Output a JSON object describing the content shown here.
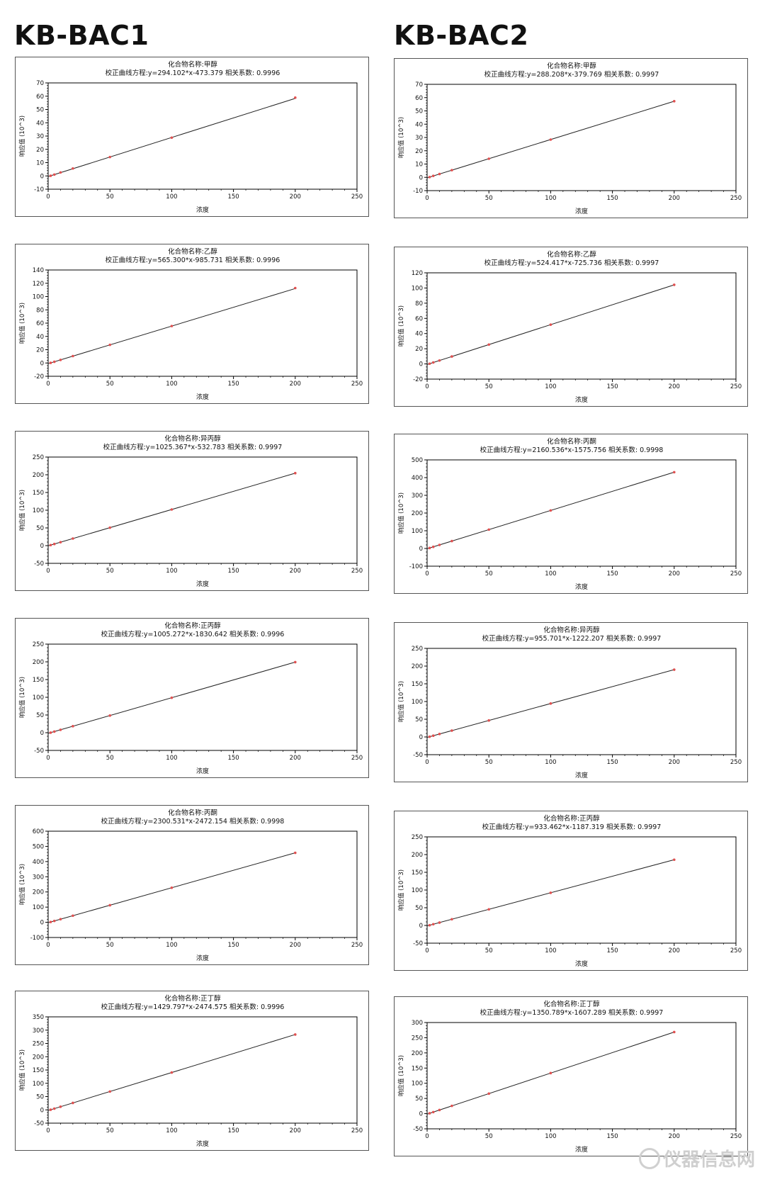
{
  "columns": [
    {
      "heading": "KB-BAC1"
    },
    {
      "heading": "KB-BAC2"
    }
  ],
  "watermark": {
    "text": "仪器信息网",
    "icon": "flask-icon"
  },
  "style": {
    "line_color": "#222222",
    "point_color": "#e05050",
    "axis_color": "#000000"
  },
  "chart_data": [
    {
      "type": "scatter",
      "column": "KB-BAC1",
      "title": "化合物名称:甲醇",
      "subtitle": "校正曲线方程:y=294.102*x-473.379 相关系数: 0.9996",
      "xlabel": "浓度",
      "ylabel": "响应值 (10^3)",
      "xlim": [
        0,
        250
      ],
      "ylim": [
        -10,
        70
      ],
      "xticks": [
        0,
        50,
        100,
        150,
        200,
        250
      ],
      "yticks": [
        -10,
        0,
        10,
        20,
        30,
        40,
        50,
        60,
        70
      ],
      "x": [
        2,
        5,
        10,
        20,
        50,
        100,
        200
      ],
      "y": [
        0.1,
        1.0,
        2.6,
        5.6,
        14.2,
        28.8,
        58.9
      ],
      "fit": {
        "slope": 0.294102,
        "intercept": -0.473379
      }
    },
    {
      "type": "scatter",
      "column": "KB-BAC1",
      "title": "化合物名称:乙醇",
      "subtitle": "校正曲线方程:y=565.300*x-985.731 相关系数: 0.9996",
      "xlabel": "浓度",
      "ylabel": "响应值 (10^3)",
      "xlim": [
        0,
        250
      ],
      "ylim": [
        -20,
        140
      ],
      "xticks": [
        0,
        50,
        100,
        150,
        200,
        250
      ],
      "yticks": [
        -20,
        0,
        20,
        40,
        60,
        80,
        100,
        120,
        140
      ],
      "x": [
        2,
        5,
        10,
        20,
        50,
        100,
        200
      ],
      "y": [
        0.2,
        1.8,
        4.6,
        10.4,
        27.3,
        55.6,
        112.8
      ],
      "fit": {
        "slope": 0.5653,
        "intercept": -0.985731
      }
    },
    {
      "type": "scatter",
      "column": "KB-BAC1",
      "title": "化合物名称:异丙醇",
      "subtitle": "校正曲线方程:y=1025.367*x-532.783 相关系数: 0.9997",
      "xlabel": "浓度",
      "ylabel": "响应值 (10^3)",
      "xlim": [
        0,
        250
      ],
      "ylim": [
        -50,
        250
      ],
      "xticks": [
        0,
        50,
        100,
        150,
        200,
        250
      ],
      "yticks": [
        -50,
        0,
        50,
        100,
        150,
        200,
        250
      ],
      "x": [
        2,
        5,
        10,
        20,
        50,
        100,
        200
      ],
      "y": [
        1.5,
        4.6,
        9.7,
        20.0,
        50.7,
        102.0,
        204.6
      ],
      "fit": {
        "slope": 1.025367,
        "intercept": -0.532783
      }
    },
    {
      "type": "scatter",
      "column": "KB-BAC1",
      "title": "化合物名称:正丙醇",
      "subtitle": "校正曲线方程:y=1005.272*x-1830.642 相关系数: 0.9996",
      "xlabel": "浓度",
      "ylabel": "响应值 (10^3)",
      "xlim": [
        0,
        250
      ],
      "ylim": [
        -50,
        250
      ],
      "xticks": [
        0,
        50,
        100,
        150,
        200,
        250
      ],
      "yticks": [
        -50,
        0,
        50,
        100,
        150,
        200,
        250
      ],
      "x": [
        2,
        5,
        10,
        20,
        50,
        100,
        200
      ],
      "y": [
        0.2,
        3.2,
        8.2,
        18.3,
        48.4,
        98.7,
        199.2
      ],
      "fit": {
        "slope": 1.005272,
        "intercept": -1.830642
      }
    },
    {
      "type": "scatter",
      "column": "KB-BAC1",
      "title": "化合物名称:丙酮",
      "subtitle": "校正曲线方程:y=2300.531*x-2472.154 相关系数: 0.9998",
      "xlabel": "浓度",
      "ylabel": "响应值 (10^3)",
      "xlim": [
        0,
        250
      ],
      "ylim": [
        -100,
        600
      ],
      "xticks": [
        0,
        50,
        100,
        150,
        200,
        250
      ],
      "yticks": [
        -100,
        0,
        100,
        200,
        300,
        400,
        500,
        600
      ],
      "x": [
        2,
        5,
        10,
        20,
        50,
        100,
        200
      ],
      "y": [
        2.1,
        9.0,
        20.5,
        43.5,
        112.6,
        227.6,
        457.6
      ],
      "fit": {
        "slope": 2.300531,
        "intercept": -2.472154
      }
    },
    {
      "type": "scatter",
      "column": "KB-BAC1",
      "title": "化合物名称:正丁醇",
      "subtitle": "校正曲线方程:y=1429.797*x-2474.575 相关系数: 0.9996",
      "xlabel": "浓度",
      "ylabel": "响应值 (10^3)",
      "xlim": [
        0,
        250
      ],
      "ylim": [
        -50,
        350
      ],
      "xticks": [
        0,
        50,
        100,
        150,
        200,
        250
      ],
      "yticks": [
        -50,
        0,
        50,
        100,
        150,
        200,
        250,
        300,
        350
      ],
      "x": [
        2,
        5,
        10,
        20,
        50,
        100,
        200
      ],
      "y": [
        0.4,
        4.7,
        11.8,
        26.1,
        69.0,
        140.5,
        283.5
      ],
      "fit": {
        "slope": 1.429797,
        "intercept": -2.474575
      }
    },
    {
      "type": "scatter",
      "column": "KB-BAC2",
      "title": "化合物名称:甲醇",
      "subtitle": "校正曲线方程:y=288.208*x-379.769 相关系数: 0.9997",
      "xlabel": "浓度",
      "ylabel": "响应值 (10^3)",
      "xlim": [
        0,
        250
      ],
      "ylim": [
        -10,
        70
      ],
      "xticks": [
        0,
        50,
        100,
        150,
        200,
        250
      ],
      "yticks": [
        -10,
        0,
        10,
        20,
        30,
        40,
        50,
        60,
        70
      ],
      "x": [
        2,
        5,
        10,
        20,
        50,
        100,
        200
      ],
      "y": [
        0.2,
        1.1,
        2.5,
        5.4,
        14.0,
        28.4,
        57.3
      ],
      "fit": {
        "slope": 0.288208,
        "intercept": -0.379769
      }
    },
    {
      "type": "scatter",
      "column": "KB-BAC2",
      "title": "化合物名称:乙醇",
      "subtitle": "校正曲线方程:y=524.417*x-725.736 相关系数: 0.9997",
      "xlabel": "浓度",
      "ylabel": "响应值 (10^3)",
      "xlim": [
        0,
        250
      ],
      "ylim": [
        -20,
        120
      ],
      "xticks": [
        0,
        50,
        100,
        150,
        200,
        250
      ],
      "yticks": [
        -20,
        0,
        20,
        40,
        60,
        80,
        100,
        120
      ],
      "x": [
        2,
        5,
        10,
        20,
        50,
        100,
        200
      ],
      "y": [
        0.3,
        1.9,
        4.5,
        9.8,
        25.5,
        51.7,
        104.2
      ],
      "fit": {
        "slope": 0.524417,
        "intercept": -0.725736
      }
    },
    {
      "type": "scatter",
      "column": "KB-BAC2",
      "title": "化合物名称:丙酮",
      "subtitle": "校正曲线方程:y=2160.536*x-1575.756 相关系数: 0.9998",
      "xlabel": "浓度",
      "ylabel": "响应值 (10^3)",
      "xlim": [
        0,
        250
      ],
      "ylim": [
        -100,
        500
      ],
      "xticks": [
        0,
        50,
        100,
        150,
        200,
        250
      ],
      "yticks": [
        -100,
        0,
        100,
        200,
        300,
        400,
        500
      ],
      "x": [
        2,
        5,
        10,
        20,
        50,
        100,
        200
      ],
      "y": [
        2.7,
        9.2,
        20.0,
        41.6,
        106.5,
        214.5,
        430.5
      ],
      "fit": {
        "slope": 2.160536,
        "intercept": -1.575756
      }
    },
    {
      "type": "scatter",
      "column": "KB-BAC2",
      "title": "化合物名称:异丙醇",
      "subtitle": "校正曲线方程:y=955.701*x-1222.207 相关系数: 0.9997",
      "xlabel": "浓度",
      "ylabel": "响应值 (10^3)",
      "xlim": [
        0,
        250
      ],
      "ylim": [
        -50,
        250
      ],
      "xticks": [
        0,
        50,
        100,
        150,
        200,
        250
      ],
      "yticks": [
        -50,
        0,
        50,
        100,
        150,
        200,
        250
      ],
      "x": [
        2,
        5,
        10,
        20,
        50,
        100,
        200
      ],
      "y": [
        0.7,
        3.6,
        8.3,
        17.9,
        46.6,
        94.3,
        189.9
      ],
      "fit": {
        "slope": 0.955701,
        "intercept": -1.222207
      }
    },
    {
      "type": "scatter",
      "column": "KB-BAC2",
      "title": "化合物名称:正丙醇",
      "subtitle": "校正曲线方程:y=933.462*x-1187.319 相关系数: 0.9997",
      "xlabel": "浓度",
      "ylabel": "响应值 (10^3)",
      "xlim": [
        0,
        250
      ],
      "ylim": [
        -50,
        250
      ],
      "xticks": [
        0,
        50,
        100,
        150,
        200,
        250
      ],
      "yticks": [
        -50,
        0,
        50,
        100,
        150,
        200,
        250
      ],
      "x": [
        2,
        5,
        10,
        20,
        50,
        100,
        200
      ],
      "y": [
        0.7,
        3.5,
        8.1,
        17.5,
        45.5,
        92.2,
        185.5
      ],
      "fit": {
        "slope": 0.933462,
        "intercept": -1.187319
      }
    },
    {
      "type": "scatter",
      "column": "KB-BAC2",
      "title": "化合物名称:正丁醇",
      "subtitle": "校正曲线方程:y=1350.789*x-1607.289 相关系数: 0.9997",
      "xlabel": "浓度",
      "ylabel": "响应值 (10^3)",
      "xlim": [
        0,
        250
      ],
      "ylim": [
        -50,
        300
      ],
      "xticks": [
        0,
        50,
        100,
        150,
        200,
        250
      ],
      "yticks": [
        -50,
        0,
        50,
        100,
        150,
        200,
        250,
        300
      ],
      "x": [
        2,
        5,
        10,
        20,
        50,
        100,
        200
      ],
      "y": [
        1.1,
        5.1,
        11.9,
        25.4,
        65.9,
        133.5,
        268.6
      ],
      "fit": {
        "slope": 1.350789,
        "intercept": -1.607289
      }
    }
  ]
}
